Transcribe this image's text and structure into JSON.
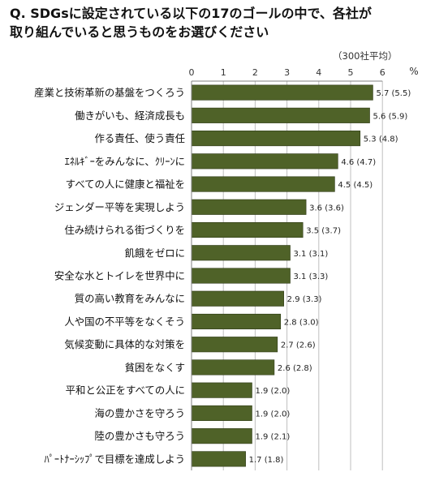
{
  "question": {
    "line1": "Q. SDGsに設定されている以下の17のゴールの中で、各社が",
    "line2": "取り組んでいると思うものをお選びください"
  },
  "note": "（300社平均）",
  "unit": "%",
  "colors": {
    "bar": "#4f6228",
    "bar_stroke": "#2e3a17",
    "grid": "#bfbfbf",
    "axis": "#808080"
  },
  "chart_data": {
    "type": "bar",
    "orientation": "horizontal",
    "categories": [
      "産業と技術革新の基盤をつくろう",
      "働きがいも、経済成長も",
      "作る責任、使う責任",
      "ｴﾈﾙｷﾞｰをみんなに、ｸﾘｰﾝに",
      "すべての人に健康と福祉を",
      "ジェンダー平等を実現しよう",
      "住み続けられる街づくりを",
      "飢餓をゼロに",
      "安全な水とトイレを世界中に",
      "質の高い教育をみんなに",
      "人や国の不平等をなくそう",
      "気候変動に具体的な対策を",
      "貧困をなくす",
      "平和と公正をすべての人に",
      "海の豊かさを守ろう",
      "陸の豊かさも守ろう",
      "ﾊﾟｰﾄﾅｰｼｯﾌﾟで目標を達成しよう"
    ],
    "values": [
      5.7,
      5.6,
      5.3,
      4.6,
      4.5,
      3.6,
      3.5,
      3.1,
      3.1,
      2.9,
      2.8,
      2.7,
      2.6,
      1.9,
      1.9,
      1.9,
      1.7
    ],
    "data_labels": [
      "5.7 (5.5)",
      "5.6 (5.9)",
      "5.3 (4.8)",
      "4.6 (4.7)",
      "4.5 (4.5)",
      "3.6 (3.6)",
      "3.5 (3.7)",
      "3.1 (3.1)",
      "3.1 (3.3)",
      "2.9 (3.3)",
      "2.8 (3.0)",
      "2.7 (2.6)",
      "2.6 (2.8)",
      "1.9 (2.0)",
      "1.9 (2.0)",
      "1.9 (2.1)",
      "1.7 (1.8)"
    ],
    "xlim": [
      0,
      6
    ],
    "ticks": [
      0,
      1,
      2,
      3,
      4,
      5,
      6
    ],
    "grid": true,
    "legend": "none"
  }
}
